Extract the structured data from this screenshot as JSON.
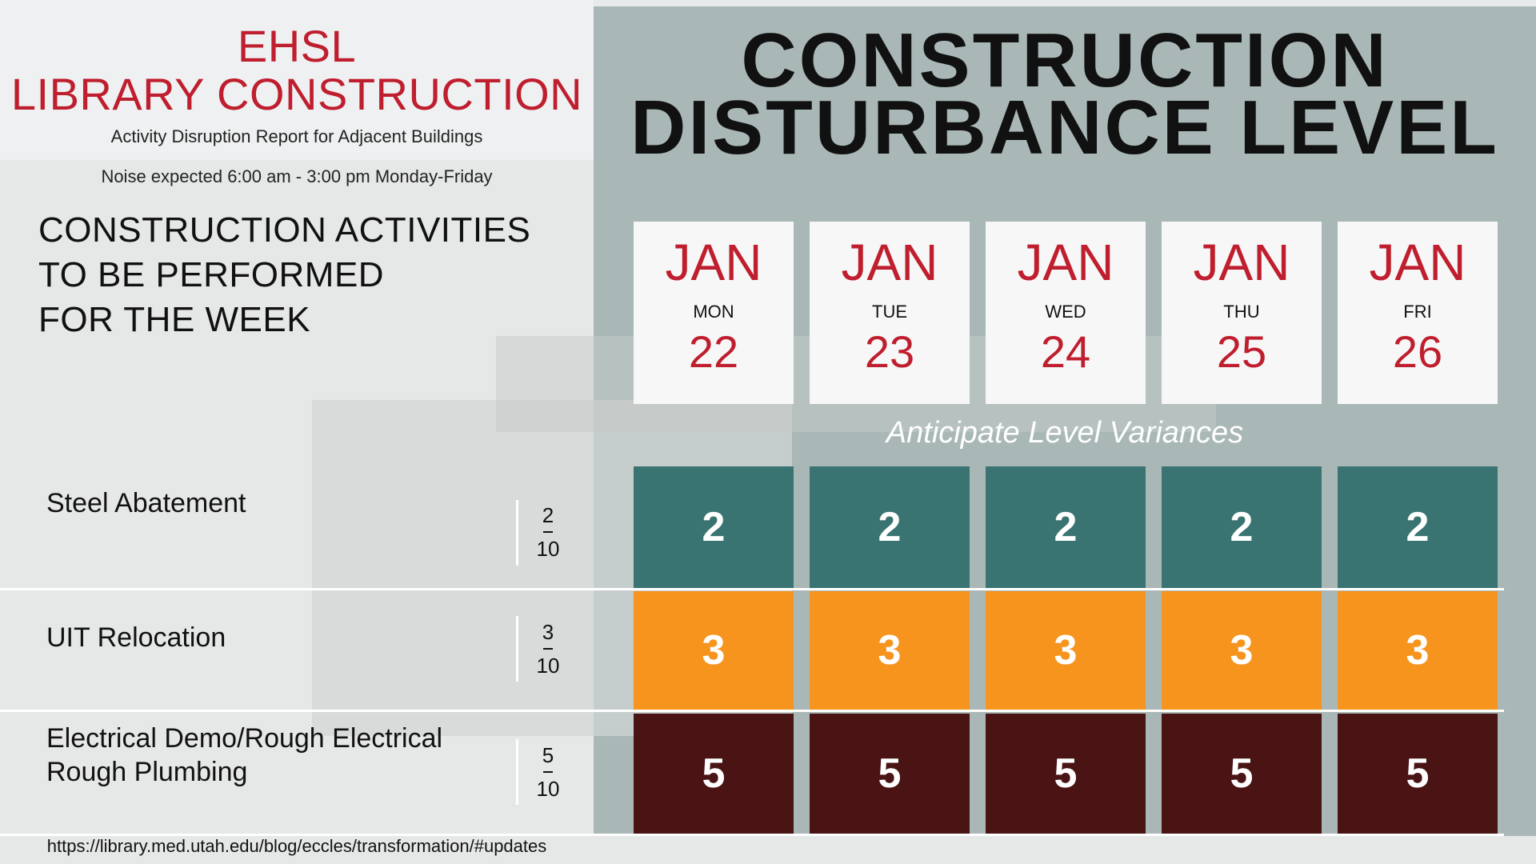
{
  "header": {
    "brand_line1": "EHSL",
    "brand_line2": "LIBRARY CONSTRUCTION",
    "subtitle": "Activity Disruption Report for Adjacent Buildings",
    "noise_note": "Noise expected 6:00 am - 3:00 pm Monday-Friday"
  },
  "activities_heading": [
    "CONSTRUCTION ACTIVITIES",
    "TO BE PERFORMED",
    "FOR THE WEEK"
  ],
  "main_title": [
    "CONSTRUCTION",
    "DISTURBANCE LEVEL"
  ],
  "days": [
    {
      "month": "JAN",
      "day": "MON",
      "date": "22"
    },
    {
      "month": "JAN",
      "day": "TUE",
      "date": "23"
    },
    {
      "month": "JAN",
      "day": "WED",
      "date": "24"
    },
    {
      "month": "JAN",
      "day": "THU",
      "date": "25"
    },
    {
      "month": "JAN",
      "day": "FRI",
      "date": "26"
    }
  ],
  "variance_note": "Anticipate Level Variances",
  "activities": [
    {
      "label_lines": [
        "Steel Abatement"
      ],
      "level": "2",
      "scale": "10",
      "daily": [
        "2",
        "2",
        "2",
        "2",
        "2"
      ],
      "color": "#3a7472"
    },
    {
      "label_lines": [
        "UIT Relocation"
      ],
      "level": "3",
      "scale": "10",
      "daily": [
        "3",
        "3",
        "3",
        "3",
        "3"
      ],
      "color": "#f7941d"
    },
    {
      "label_lines": [
        "Electrical Demo/Rough Electrical",
        "Rough Plumbing"
      ],
      "level": "5",
      "scale": "10",
      "daily": [
        "5",
        "5",
        "5",
        "5",
        "5"
      ],
      "color": "#4a1414"
    }
  ],
  "footer_url": "https://library.med.utah.edu/blog/eccles/transformation/#updates",
  "colors": {
    "accent_red": "#bf1e2e",
    "panel_gray": "#a9b8b7"
  }
}
